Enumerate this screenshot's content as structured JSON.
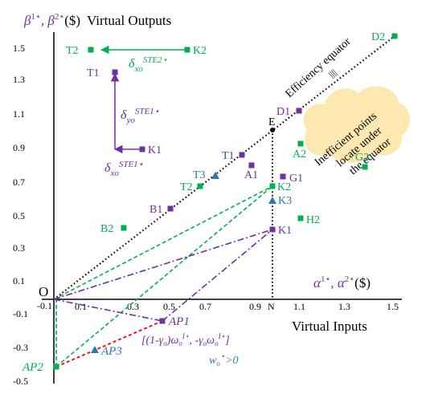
{
  "title": {
    "prefix": "β",
    "sup1": "1⋆",
    "sep": ", β",
    "sup2": "2⋆",
    "unit": "($)",
    "text": "Virtual Outputs"
  },
  "xaxis_caption": {
    "prefix": "α",
    "sup1": "1⋆",
    "sep": ", α",
    "sup2": "2⋆",
    "unit": "($)"
  },
  "xlabel": "Virtual Inputs",
  "origin_label": "O",
  "x_ticks": [
    "-0.1",
    "0.1",
    "0.3",
    "0.5",
    "0.7",
    "0.9",
    "1.1",
    "1.3",
    "1.5"
  ],
  "y_ticks": [
    "1.5",
    "1.3",
    "1.1",
    "0.9",
    "0.7",
    "0.5",
    "0.3",
    "0.1",
    "-0.1",
    "-0.3",
    "-0.5"
  ],
  "efficiency_label": "Efficiency equator",
  "inefficient_note": [
    "Inefficient points",
    "locate under",
    "the equator"
  ],
  "E_label": "E",
  "N_label": "N",
  "points": {
    "D2": "D2",
    "K2_top": "K2",
    "T2_top": "T2",
    "T1_top": "T1",
    "K1_low": "K1",
    "D1": "D1",
    "A2": "A2",
    "G2": "G2",
    "T1": "T1",
    "A1": "A1",
    "G1": "G1",
    "T3": "T3",
    "T2": "T2",
    "K2": "K2",
    "K3": "K3",
    "B1": "B1",
    "H2": "H2",
    "B2": "B2",
    "K1": "K1",
    "AP1": "AP1",
    "AP2": "AP2",
    "AP3": "AP3"
  },
  "deltas": {
    "xo2": {
      "base": "δ",
      "sub": "xo",
      "sup": "STE2⋆"
    },
    "yo1": {
      "base": "δ",
      "sub": "yo",
      "sup": "STE1⋆"
    },
    "xo1": {
      "base": "δ",
      "sub": "xo",
      "sup": "STE1⋆"
    }
  },
  "formula": "[(1-γ",
  "formula_parts": {
    "o1": "o",
    "mid": ")ω",
    "o2": "o",
    "s1": "I⋆",
    "mid2": ", -γ",
    "o3": "o",
    "mid3": "ω",
    "o4": "o",
    "s2": "I⋆",
    "end": "]"
  },
  "w_condition": {
    "base": "w",
    "sub": "o",
    "sup": "⋆",
    "rest": ">0"
  },
  "colors": {
    "purple": "#7030a0",
    "green": "#00b050",
    "blue": "#2e75b6",
    "red": "#ff0000",
    "note_fill": "#fde9b0",
    "black": "#000000"
  }
}
